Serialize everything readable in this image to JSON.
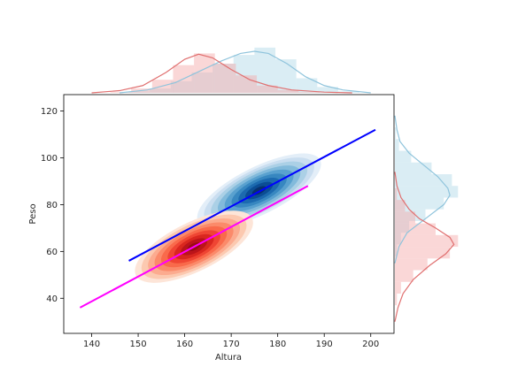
{
  "chart_data": {
    "type": "scatter",
    "subtype": "joint kde density plot with marginal histograms and regression lines",
    "title": "",
    "xlabel": "Altura",
    "ylabel": "Peso",
    "xlim": [
      134,
      205
    ],
    "ylim": [
      25,
      127
    ],
    "xticks": [
      140,
      150,
      160,
      170,
      180,
      190,
      200
    ],
    "yticks": [
      40,
      60,
      80,
      100,
      120
    ],
    "grid": false,
    "legend": "none",
    "series": [
      {
        "key": "blue",
        "color": "#1f6fb4",
        "kde_center": [
          176,
          86
        ],
        "kde_spread_x": 9.5,
        "kde_spread_y": 10.5,
        "kde_corr": 0.9,
        "hist_color": "#add8e6",
        "hist_x": {
          "bins": [
            [
              148,
              152.5,
              1
            ],
            [
              152.5,
              157,
              3
            ],
            [
              157,
              161.5,
              8
            ],
            [
              161.5,
              166,
              14
            ],
            [
              166,
              170.5,
              20
            ],
            [
              170.5,
              175,
              26
            ],
            [
              175,
              179.5,
              31
            ],
            [
              179.5,
              184,
              23
            ],
            [
              184,
              188.5,
              10
            ],
            [
              188.5,
              193,
              4
            ],
            [
              193,
              197.5,
              1
            ]
          ],
          "kde": [
            [
              146,
              0
            ],
            [
              152,
              2
            ],
            [
              158,
              7
            ],
            [
              164,
              16
            ],
            [
              168,
              22
            ],
            [
              172,
              27
            ],
            [
              175,
              28.5
            ],
            [
              178,
              27
            ],
            [
              182,
              20
            ],
            [
              186,
              11
            ],
            [
              190,
              5
            ],
            [
              194,
              2
            ],
            [
              200,
              0
            ]
          ]
        },
        "hist_y": {
          "bins": [
            [
              58,
              63,
              1
            ],
            [
              63,
              68,
              3
            ],
            [
              68,
              73,
              7
            ],
            [
              73,
              78,
              15
            ],
            [
              78,
              83,
              24
            ],
            [
              83,
              88,
              31
            ],
            [
              88,
              93,
              28
            ],
            [
              93,
              98,
              18
            ],
            [
              98,
              103,
              8
            ],
            [
              103,
              108,
              2
            ],
            [
              108,
              113,
              0.5
            ]
          ],
          "kde": [
            [
              55,
              0
            ],
            [
              62,
              2
            ],
            [
              68,
              6
            ],
            [
              74,
              15
            ],
            [
              80,
              24
            ],
            [
              84,
              27
            ],
            [
              87,
              26
            ],
            [
              92,
              21
            ],
            [
              97,
              14
            ],
            [
              102,
              7
            ],
            [
              107,
              2.5
            ],
            [
              112,
              1
            ],
            [
              118,
              0
            ]
          ]
        }
      },
      {
        "key": "red",
        "color": "#e8312a",
        "kde_center": [
          162,
          62
        ],
        "kde_spread_x": 9,
        "kde_spread_y": 10,
        "kde_corr": 0.88,
        "hist_color": "#f4a6a6",
        "hist_x": {
          "bins": [
            [
              144,
              148.5,
              0.5
            ],
            [
              148.5,
              153,
              3
            ],
            [
              153,
              157.5,
              9
            ],
            [
              157.5,
              162,
              19
            ],
            [
              162,
              166.5,
              27
            ],
            [
              166.5,
              171,
              20
            ],
            [
              171,
              175.5,
              12
            ],
            [
              175.5,
              180,
              5
            ],
            [
              180,
              184.5,
              2
            ],
            [
              184.5,
              189,
              0.5
            ]
          ],
          "kde": [
            [
              140,
              0
            ],
            [
              146,
              1.5
            ],
            [
              151,
              5
            ],
            [
              156,
              14
            ],
            [
              160,
              23
            ],
            [
              163,
              26.5
            ],
            [
              166,
              24
            ],
            [
              170,
              16
            ],
            [
              174,
              9
            ],
            [
              178,
              5
            ],
            [
              183,
              2
            ],
            [
              190,
              0.5
            ],
            [
              196,
              0
            ]
          ]
        },
        "hist_y": {
          "bins": [
            [
              37,
              42,
              1
            ],
            [
              42,
              47,
              3
            ],
            [
              47,
              52,
              9
            ],
            [
              52,
              57,
              16
            ],
            [
              57,
              62,
              27
            ],
            [
              62,
              67,
              31
            ],
            [
              67,
              72,
              20
            ],
            [
              72,
              77,
              10
            ],
            [
              77,
              82,
              5
            ],
            [
              82,
              87,
              1
            ]
          ],
          "kde": [
            [
              30,
              0
            ],
            [
              36,
              1.5
            ],
            [
              42,
              4
            ],
            [
              48,
              9
            ],
            [
              54,
              17
            ],
            [
              59,
              25
            ],
            [
              63,
              29
            ],
            [
              66,
              27
            ],
            [
              70,
              20
            ],
            [
              74,
              12
            ],
            [
              78,
              7
            ],
            [
              83,
              3
            ],
            [
              88,
              1
            ],
            [
              94,
              0
            ]
          ]
        }
      }
    ],
    "regression_lines": [
      {
        "name": "blue",
        "color": "#0000ff",
        "points": [
          [
            148,
            56
          ],
          [
            201,
            112
          ]
        ]
      },
      {
        "name": "magenta",
        "color": "#ff00ff",
        "points": [
          [
            137.5,
            36
          ],
          [
            186.5,
            88
          ]
        ]
      }
    ]
  }
}
